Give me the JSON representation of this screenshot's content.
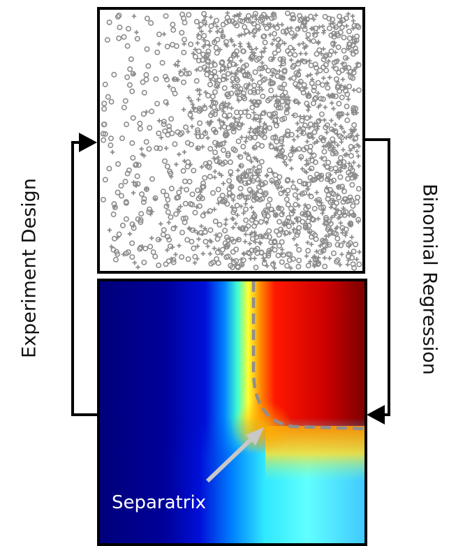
{
  "labels": {
    "left": "Experiment Design",
    "right": "Binomial Regression",
    "separatrix": "Separatrix"
  },
  "colors": {
    "markers": "#8c8c8c",
    "frame": "#000000",
    "separatrix_line": "#8f8f8f",
    "separatrix_arrow": "#c8c8c8"
  },
  "panels": {
    "top": {
      "content": "scatter of sampled experiments",
      "marker_types": [
        "circle",
        "plus"
      ]
    },
    "bottom": {
      "content": "jet colormap heat map of fitted probability",
      "colormap": "jet",
      "separatrix_style": "dashed"
    }
  }
}
